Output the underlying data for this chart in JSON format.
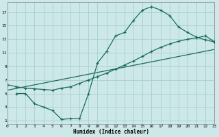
{
  "xlabel": "Humidex (Indice chaleur)",
  "bg_color": "#cce8e8",
  "grid_color": "#aacece",
  "line_color": "#1a6b5a",
  "yticks": [
    1,
    3,
    5,
    7,
    9,
    11,
    13,
    15,
    17
  ],
  "xticks": [
    0,
    1,
    2,
    3,
    4,
    5,
    6,
    7,
    8,
    9,
    10,
    11,
    12,
    13,
    14,
    15,
    16,
    17,
    18,
    19,
    20,
    21,
    22,
    23
  ],
  "xlim": [
    0,
    23
  ],
  "ylim": [
    0.5,
    18.5
  ],
  "line1_x": [
    1,
    2,
    3,
    4,
    5,
    6,
    7,
    8,
    9,
    10,
    11,
    12,
    13,
    14,
    15,
    16,
    17,
    18,
    19,
    20,
    21,
    22,
    23
  ],
  "line1_y": [
    5.0,
    5.0,
    3.5,
    3.0,
    2.5,
    1.2,
    1.3,
    1.3,
    5.0,
    9.5,
    11.2,
    13.5,
    14.0,
    15.8,
    17.3,
    17.8,
    17.3,
    16.5,
    14.8,
    14.0,
    13.3,
    12.9,
    12.6
  ],
  "line2_x": [
    0,
    1,
    2,
    3,
    4,
    5,
    6,
    7,
    8,
    9,
    10,
    11,
    12,
    13,
    14,
    15,
    16,
    17,
    18,
    19,
    20,
    21,
    22,
    23
  ],
  "line2_y": [
    6.3,
    6.0,
    5.8,
    5.7,
    5.6,
    5.5,
    5.8,
    6.0,
    6.5,
    7.0,
    7.5,
    8.0,
    8.6,
    9.2,
    9.8,
    10.5,
    11.2,
    11.8,
    12.3,
    12.7,
    13.0,
    13.2,
    13.5,
    12.6
  ],
  "line3_x": [
    0,
    23
  ],
  "line3_y": [
    5.5,
    11.5
  ]
}
